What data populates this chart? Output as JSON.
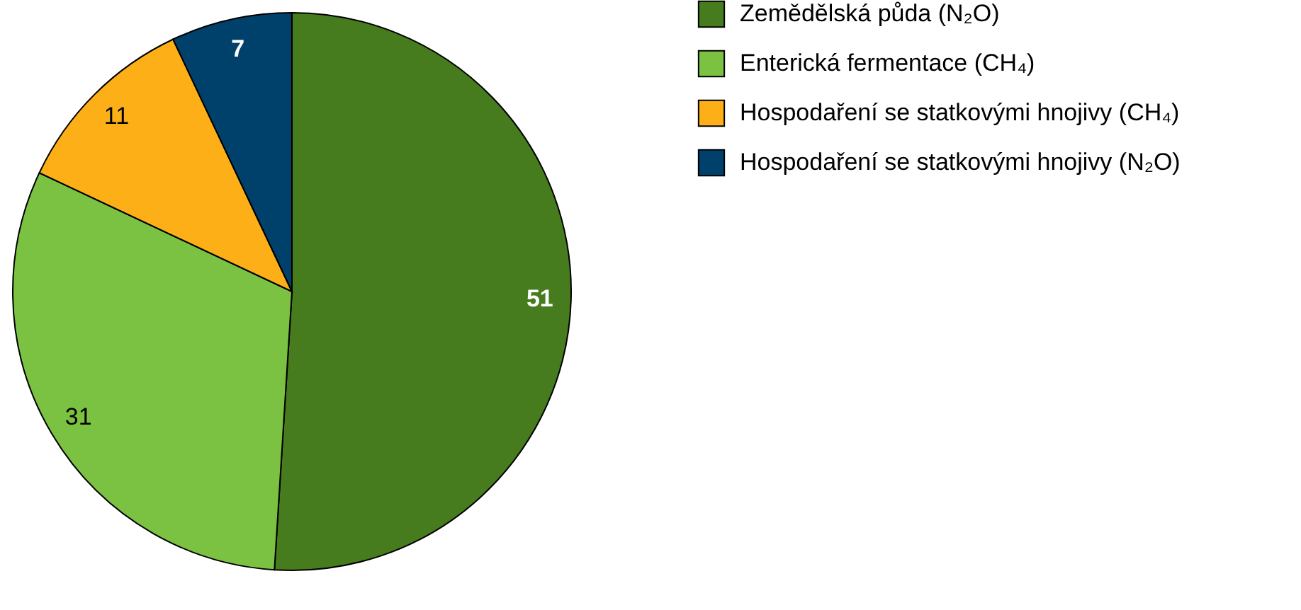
{
  "chart_data": {
    "type": "pie",
    "categories": [
      "Zemědělská půda (N₂O)",
      "Enterická fermentace (CH₄)",
      "Hospodaření se statkovými hnojivy (CH₄)",
      "Hospodaření se statkovými hnojivy (N₂O)"
    ],
    "values": [
      51,
      31,
      11,
      7
    ],
    "colors": [
      "#467b1e",
      "#7bc142",
      "#fdaf17",
      "#00416b"
    ],
    "data_labels": true,
    "legend": "top right"
  }
}
